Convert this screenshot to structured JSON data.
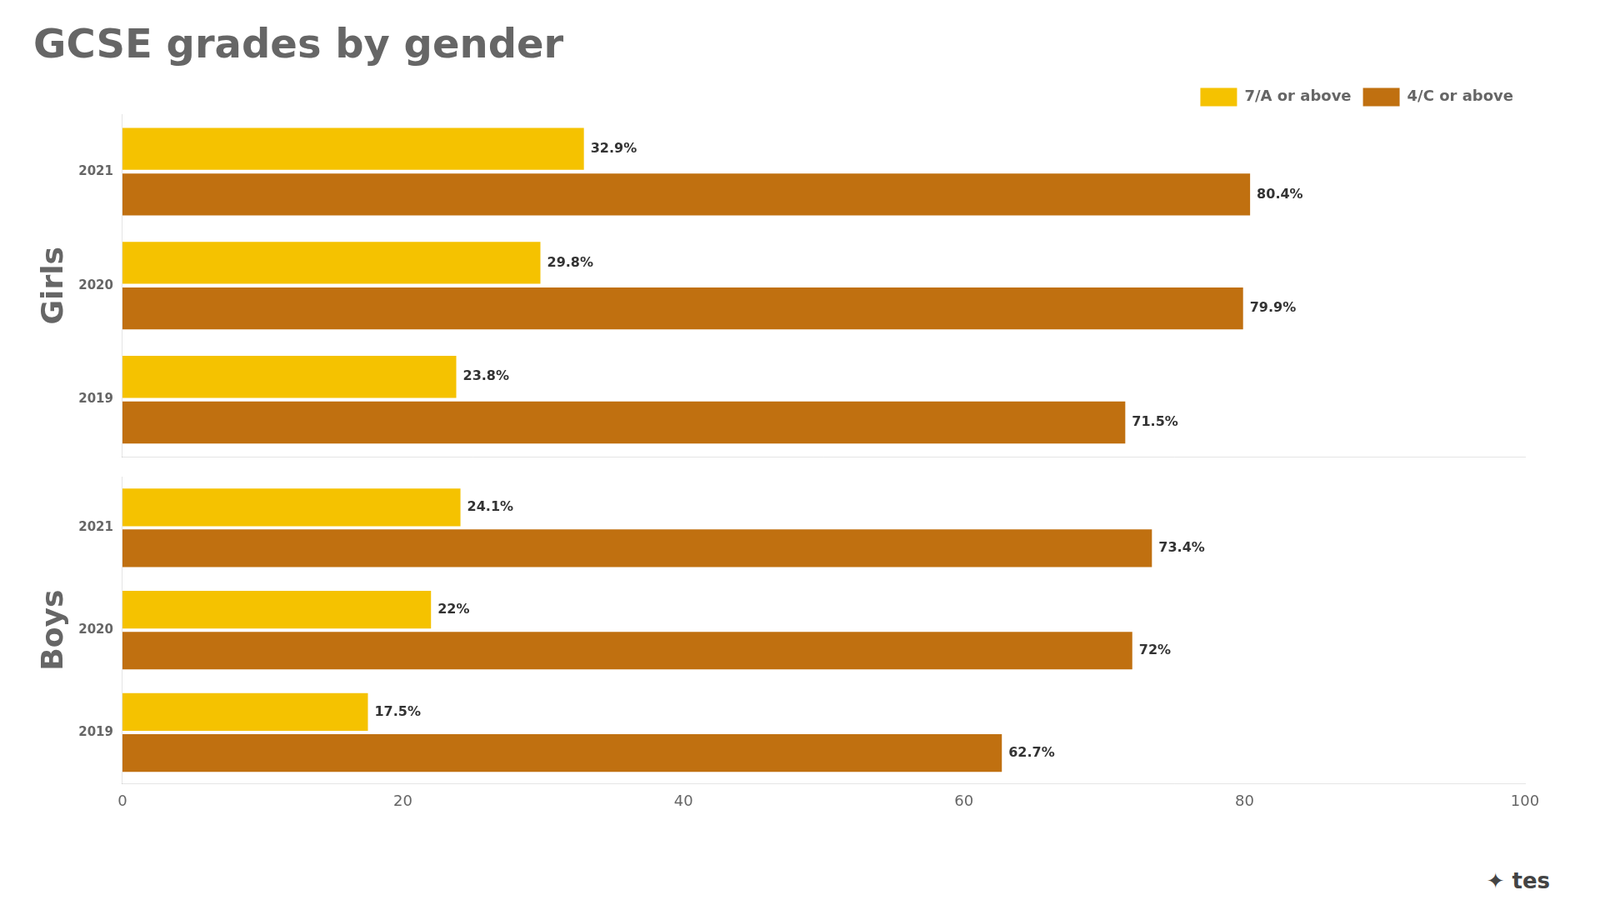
{
  "chart_data": [
    {
      "type": "bar",
      "orientation": "horizontal",
      "title": "GCSE grades by gender",
      "ylabel": "Girls",
      "categories": [
        "2021",
        "2020",
        "2019"
      ],
      "series": [
        {
          "name": "7/A or above",
          "color": "#f5c200",
          "values": [
            32.9,
            29.8,
            23.8
          ],
          "value_labels": [
            "32.9%",
            "29.8%",
            "23.8%"
          ]
        },
        {
          "name": "4/C or above",
          "color": "#c07010",
          "values": [
            80.4,
            79.9,
            71.5
          ],
          "value_labels": [
            "80.4%",
            "79.9%",
            "71.5%"
          ]
        }
      ],
      "xlim": [
        0,
        100
      ],
      "tick_labels": "y",
      "grid": false,
      "legend": "upper right",
      "data_labels": true
    },
    {
      "type": "bar",
      "orientation": "horizontal",
      "ylabel": "Boys",
      "categories": [
        "2021",
        "2020",
        "2019"
      ],
      "series": [
        {
          "name": "7/A or above",
          "color": "#f5c200",
          "values": [
            24.1,
            22.0,
            17.5
          ],
          "value_labels": [
            "24.1%",
            "22%",
            "17.5%"
          ]
        },
        {
          "name": "4/C or above",
          "color": "#c07010",
          "values": [
            73.4,
            72.0,
            62.7
          ],
          "value_labels": [
            "73.4%",
            "72%",
            "62.7%"
          ]
        }
      ],
      "xlim": [
        0,
        100
      ],
      "xticks": [
        0,
        20,
        40,
        60,
        80,
        100
      ],
      "grid": false,
      "data_labels": true,
      "annotations": [
        "✦ tes"
      ]
    }
  ]
}
